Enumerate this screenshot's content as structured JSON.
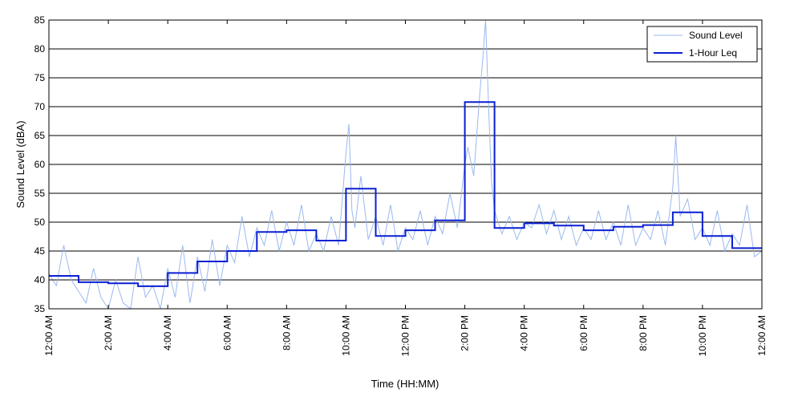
{
  "chart_data": {
    "type": "line",
    "title": "",
    "xlabel": "Time (HH:MM)",
    "ylabel": "Sound Level (dBA)",
    "ylim": [
      35,
      85
    ],
    "xlim_hours": [
      0,
      24
    ],
    "yticks": [
      35,
      40,
      45,
      50,
      55,
      60,
      65,
      70,
      75,
      80,
      85
    ],
    "xticks": [
      {
        "hour": 0,
        "label": "12:00 AM"
      },
      {
        "hour": 2,
        "label": "2:00 AM"
      },
      {
        "hour": 4,
        "label": "4:00 AM"
      },
      {
        "hour": 6,
        "label": "6:00 AM"
      },
      {
        "hour": 8,
        "label": "8:00 AM"
      },
      {
        "hour": 10,
        "label": "10:00 AM"
      },
      {
        "hour": 12,
        "label": "12:00 PM"
      },
      {
        "hour": 14,
        "label": "2:00 PM"
      },
      {
        "hour": 16,
        "label": "4:00 PM"
      },
      {
        "hour": 18,
        "label": "6:00 PM"
      },
      {
        "hour": 20,
        "label": "8:00 PM"
      },
      {
        "hour": 22,
        "label": "10:00 PM"
      },
      {
        "hour": 24,
        "label": "12:00 AM"
      }
    ],
    "grid": "horizontal",
    "legend_position": "top-right",
    "series": [
      {
        "name": "Sound Level",
        "style": "thin-line",
        "color": "#9bb8ee",
        "hours": [
          0.0,
          0.25,
          0.5,
          0.75,
          1.0,
          1.25,
          1.5,
          1.75,
          2.0,
          2.25,
          2.5,
          2.75,
          3.0,
          3.25,
          3.5,
          3.75,
          4.0,
          4.25,
          4.5,
          4.75,
          5.0,
          5.25,
          5.5,
          5.75,
          6.0,
          6.25,
          6.5,
          6.75,
          7.0,
          7.25,
          7.5,
          7.75,
          8.0,
          8.25,
          8.5,
          8.75,
          9.0,
          9.25,
          9.5,
          9.75,
          10.0,
          10.1,
          10.2,
          10.3,
          10.5,
          10.75,
          11.0,
          11.25,
          11.5,
          11.75,
          12.0,
          12.25,
          12.5,
          12.75,
          13.0,
          13.25,
          13.5,
          13.75,
          14.0,
          14.1,
          14.3,
          14.5,
          14.6,
          14.7,
          14.8,
          14.9,
          15.0,
          15.25,
          15.5,
          15.75,
          16.0,
          16.25,
          16.5,
          16.75,
          17.0,
          17.25,
          17.5,
          17.75,
          18.0,
          18.25,
          18.5,
          18.75,
          19.0,
          19.25,
          19.5,
          19.75,
          20.0,
          20.25,
          20.5,
          20.75,
          21.0,
          21.1,
          21.25,
          21.5,
          21.75,
          22.0,
          22.25,
          22.5,
          22.75,
          23.0,
          23.25,
          23.5,
          23.75,
          24.0
        ],
        "values": [
          41,
          39,
          46,
          40,
          38,
          36,
          42,
          37,
          35,
          40,
          36,
          35,
          44,
          37,
          39,
          35,
          42,
          37,
          46,
          36,
          44,
          38,
          47,
          39,
          46,
          43,
          51,
          44,
          49,
          46,
          52,
          45,
          50,
          46,
          53,
          45,
          48,
          45,
          51,
          46,
          62,
          67,
          52,
          49,
          58,
          47,
          51,
          46,
          53,
          45,
          49,
          47,
          52,
          46,
          51,
          48,
          55,
          49,
          60,
          63,
          58,
          72,
          78,
          85,
          70,
          57,
          52,
          48,
          51,
          47,
          50,
          49,
          53,
          48,
          52,
          47,
          51,
          46,
          49,
          47,
          52,
          47,
          50,
          46,
          53,
          46,
          49,
          47,
          52,
          46,
          56,
          65,
          51,
          54,
          47,
          49,
          46,
          52,
          45,
          48,
          46,
          53,
          44,
          45
        ]
      },
      {
        "name": "1-Hour Leq",
        "style": "step",
        "color": "#0a1fd1",
        "hours": [
          0,
          1,
          2,
          3,
          4,
          5,
          6,
          7,
          8,
          9,
          10,
          11,
          12,
          13,
          14,
          15,
          16,
          17,
          18,
          19,
          20,
          21,
          22,
          23
        ],
        "values": [
          40.7,
          39.6,
          39.4,
          38.9,
          41.2,
          43.2,
          45.0,
          48.3,
          48.6,
          46.8,
          55.8,
          47.6,
          48.6,
          50.3,
          70.8,
          49.0,
          49.8,
          49.4,
          48.6,
          49.2,
          49.5,
          51.7,
          47.6,
          45.5
        ]
      }
    ]
  }
}
